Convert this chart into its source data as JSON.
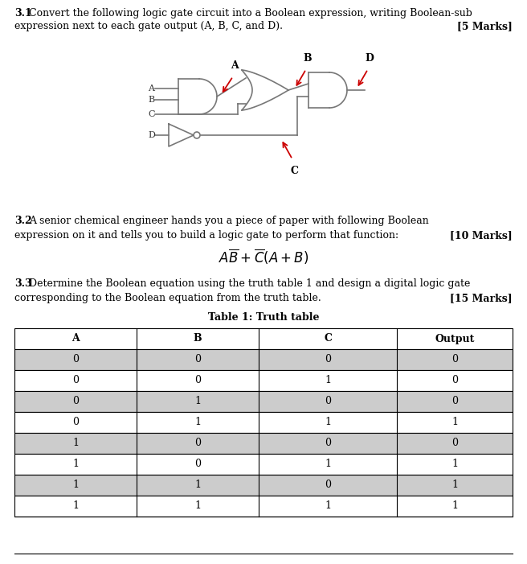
{
  "text_31_bold": "3.1",
  "text_31_rest": " Convert the following logic gate circuit into a Boolean expression, writing Boolean-sub",
  "text_31b": "expression next to each gate output (A, B, C, and D).",
  "marks_31": "[5 Marks]",
  "text_32_bold": "3.2",
  "text_32_rest": " A senior chemical engineer hands you a piece of paper with following Boolean",
  "text_32b": "expression on it and tells you to build a logic gate to perform that function:",
  "marks_32": "[10 Marks]",
  "text_33_bold": "3.3",
  "text_33_rest": " Determine the Boolean equation using the truth table 1 and design a digital logic gate",
  "text_33b": "corresponding to the Boolean equation from the truth table.",
  "marks_33": "[15 Marks]",
  "table_title": "Table 1: Truth table",
  "table_headers": [
    "A",
    "B",
    "C",
    "Output"
  ],
  "table_data": [
    [
      0,
      0,
      0,
      0
    ],
    [
      0,
      0,
      1,
      0
    ],
    [
      0,
      1,
      0,
      0
    ],
    [
      0,
      1,
      1,
      1
    ],
    [
      1,
      0,
      0,
      0
    ],
    [
      1,
      0,
      1,
      1
    ],
    [
      1,
      1,
      0,
      1
    ],
    [
      1,
      1,
      1,
      1
    ]
  ],
  "bg_color": "#ffffff",
  "text_color": "#000000",
  "gate_color": "#777777",
  "arrow_color": "#cc0000",
  "row_colors": [
    "#cccccc",
    "#ffffff",
    "#cccccc",
    "#ffffff",
    "#cccccc",
    "#ffffff",
    "#cccccc",
    "#ffffff"
  ],
  "fs_body": 9.0,
  "fs_small": 8.0
}
